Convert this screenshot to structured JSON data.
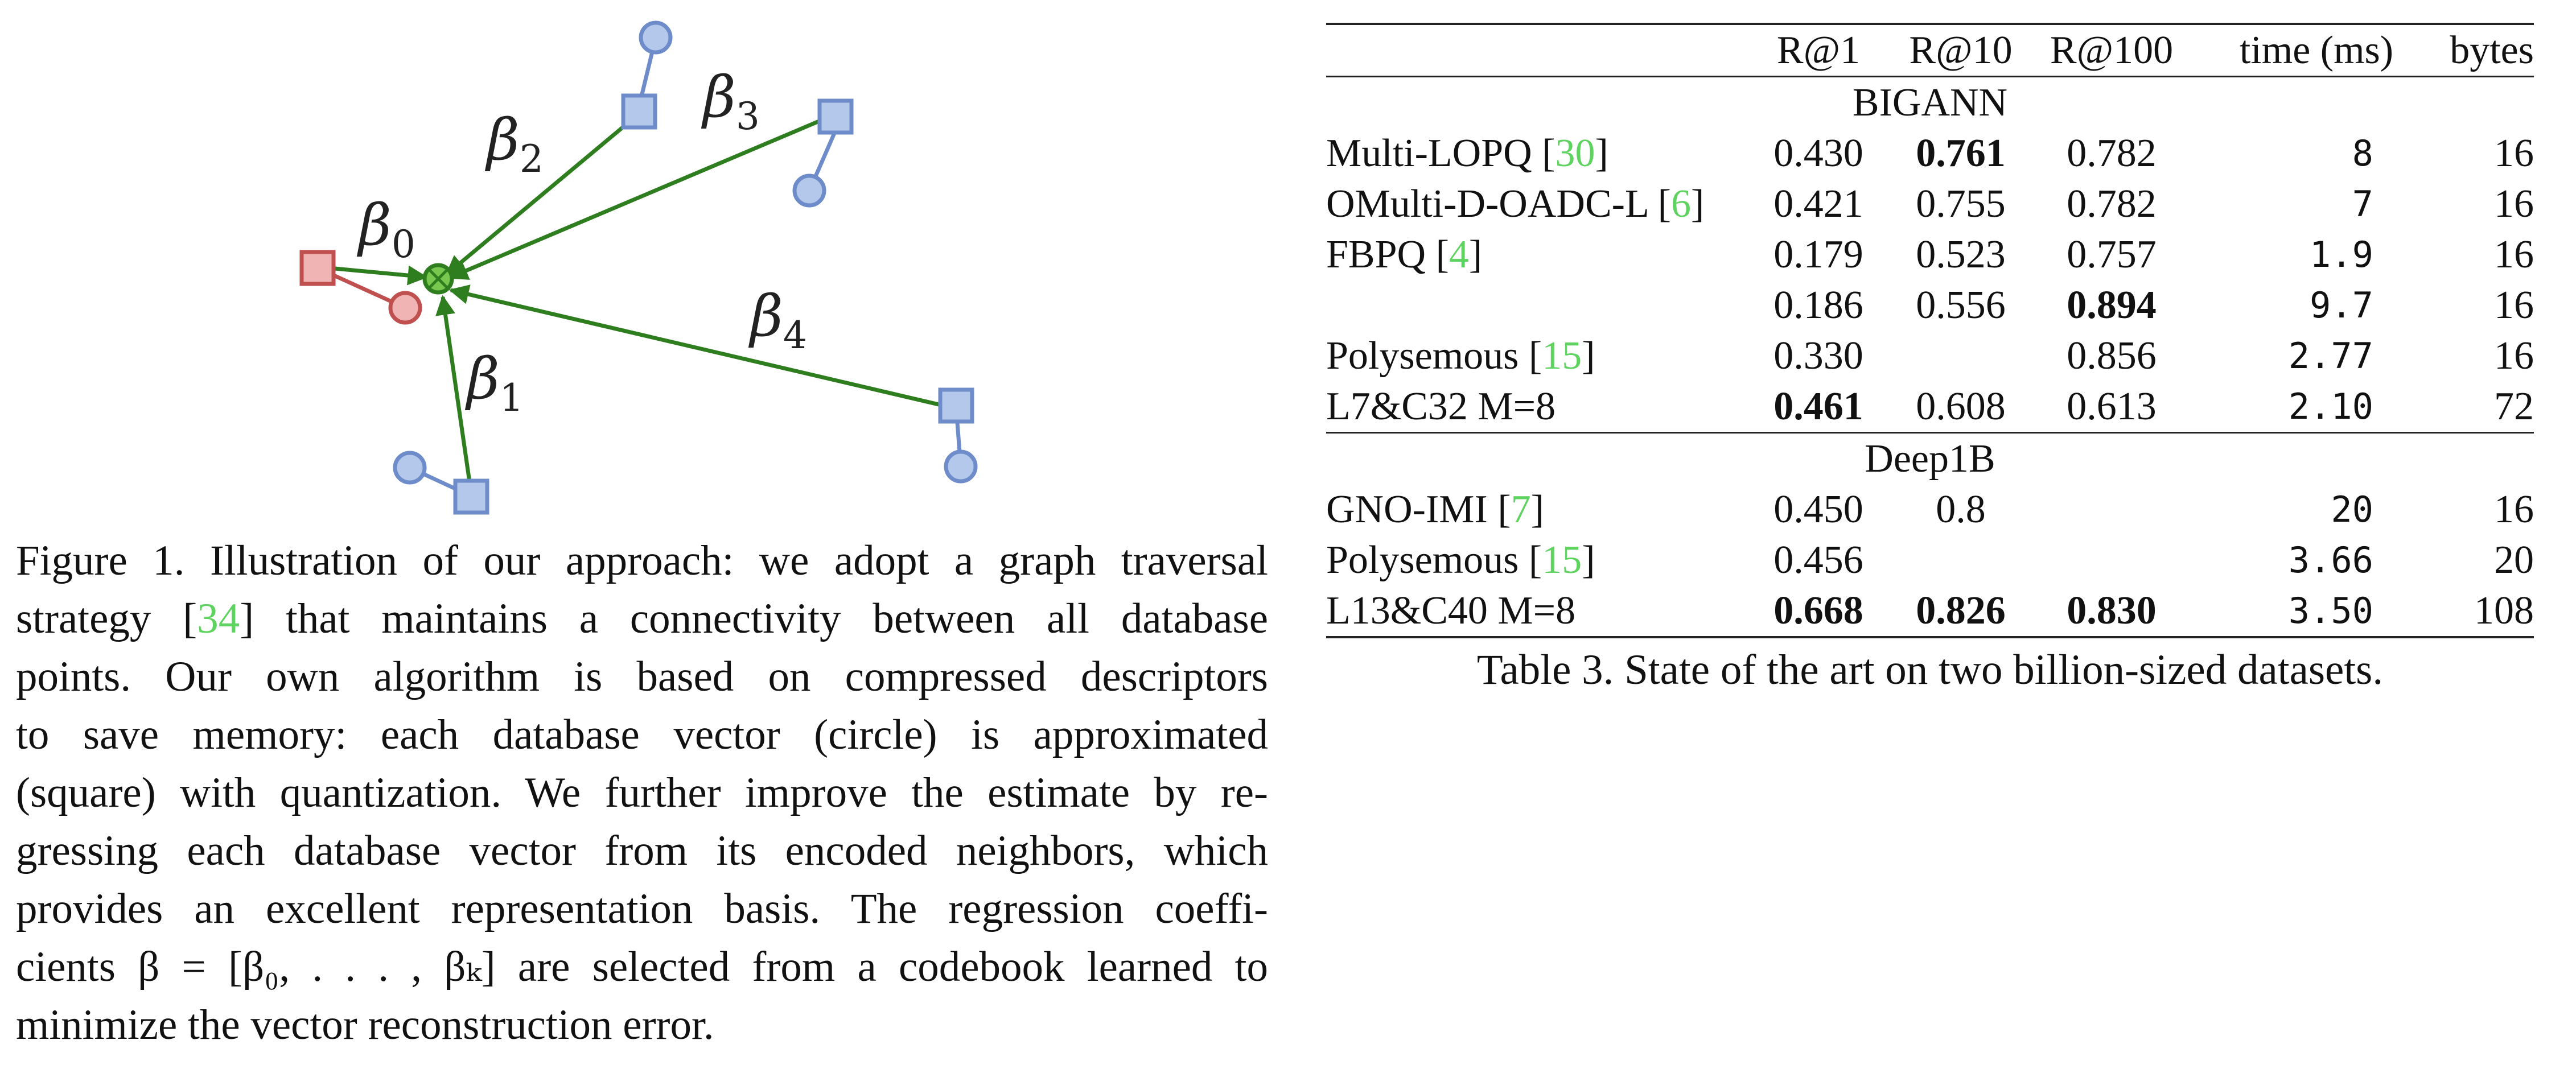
{
  "figure": {
    "labels": {
      "b0": {
        "sym": "β",
        "sub": "0"
      },
      "b1": {
        "sym": "β",
        "sub": "1"
      },
      "b2": {
        "sym": "β",
        "sub": "2"
      },
      "b3": {
        "sym": "β",
        "sub": "3"
      },
      "b4": {
        "sym": "β",
        "sub": "4"
      }
    },
    "colors": {
      "arrow": "#2e7d1e",
      "node_fill": "#b4c8ec",
      "node_stroke": "#6d8cc9",
      "red_fill": "#f0b4b4",
      "red_stroke": "#c05050",
      "center_fill": "#78c850"
    }
  },
  "figure_caption": {
    "lines": [
      "Figure 1. Illustration of our approach: we adopt a graph traversal",
      {
        "pre": "strategy [",
        "cite": "34",
        "post": "] that maintains a connectivity between all database"
      },
      "points.  Our own algorithm is based on compressed descriptors",
      "to save memory: each database vector (circle) is approximated",
      "(square) with quantization. We further improve the estimate by re-",
      "gressing each database vector from its encoded neighbors, which",
      "provides an excellent representation basis. The regression coeffi-",
      {
        "pre": "cients β = [β₀, . . . , βₖ] are selected from a codebook learned to",
        "cite": "",
        "post": ""
      },
      "minimize the vector reconstruction error."
    ]
  },
  "table": {
    "headers": [
      "",
      "R@1",
      "R@10",
      "R@100",
      "time (ms)",
      "bytes"
    ],
    "sections": [
      {
        "title": "BIGANN",
        "rows": [
          {
            "method": "Multi-LOPQ [",
            "cite": "30",
            "close": "]",
            "r1": "0.430",
            "r10": "0.761",
            "r100": "0.782",
            "time": "8",
            "bytes": "16",
            "bold": [
              "r10"
            ]
          },
          {
            "method": "OMulti-D-OADC-L [",
            "cite": "6",
            "close": "]",
            "r1": "0.421",
            "r10": "0.755",
            "r100": "0.782",
            "time": "7",
            "bytes": "16",
            "bold": []
          },
          {
            "method": "FBPQ [",
            "cite": "4",
            "close": "]",
            "r1": "0.179",
            "r10": "0.523",
            "r100": "0.757",
            "time": "1.9",
            "bytes": "16",
            "bold": []
          },
          {
            "method": "",
            "cite": "",
            "close": "",
            "r1": "0.186",
            "r10": "0.556",
            "r100": "0.894",
            "time": "9.7",
            "bytes": "16",
            "bold": [
              "r100"
            ]
          },
          {
            "method": "Polysemous [",
            "cite": "15",
            "close": "]",
            "r1": "0.330",
            "r10": "",
            "r100": "0.856",
            "time": "2.77",
            "bytes": "16",
            "bold": []
          },
          {
            "method": "L7&C32 M=8",
            "cite": "",
            "close": "",
            "r1": "0.461",
            "r10": "0.608",
            "r100": "0.613",
            "time": "2.10",
            "bytes": "72",
            "bold": [
              "r1"
            ]
          }
        ]
      },
      {
        "title": "Deep1B",
        "rows": [
          {
            "method": "GNO-IMI [",
            "cite": "7",
            "close": "]",
            "r1": "0.450",
            "r10": "0.8",
            "r100": "",
            "time": "20",
            "bytes": "16",
            "bold": []
          },
          {
            "method": "Polysemous [",
            "cite": "15",
            "close": "]",
            "r1": "0.456",
            "r10": "",
            "r100": "",
            "time": "3.66",
            "bytes": "20",
            "bold": []
          },
          {
            "method": "L13&C40 M=8",
            "cite": "",
            "close": "",
            "r1": "0.668",
            "r10": "0.826",
            "r100": "0.830",
            "time": "3.50",
            "bytes": "108",
            "bold": [
              "r1",
              "r10",
              "r100"
            ]
          }
        ]
      }
    ],
    "caption": "Table 3. State of the art on two billion-sized datasets."
  }
}
